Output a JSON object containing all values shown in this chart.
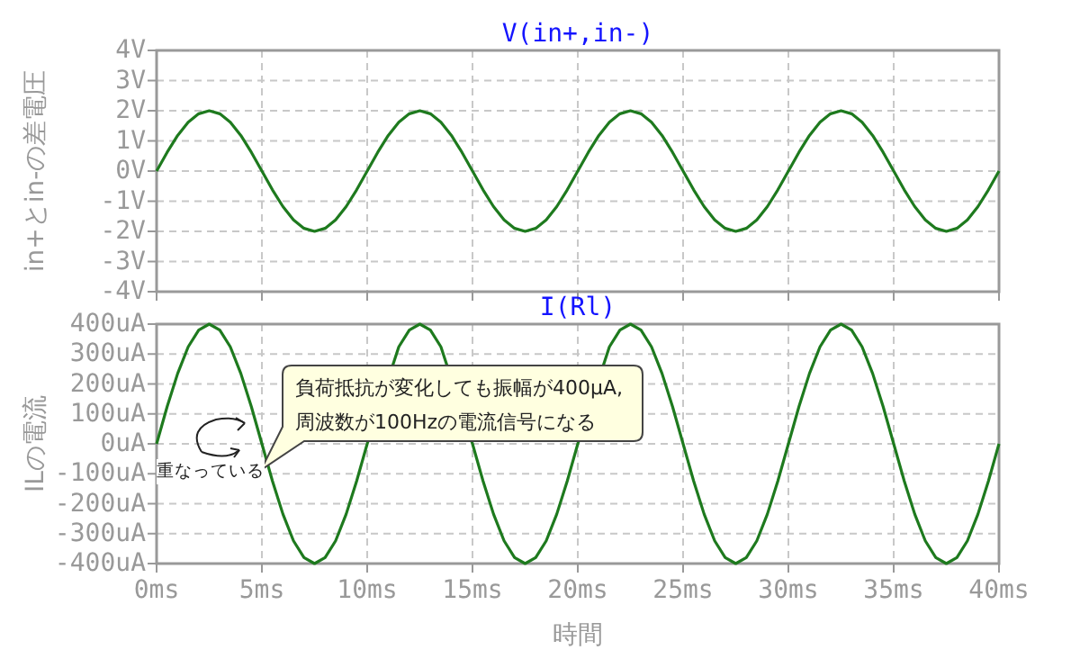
{
  "chart_data": [
    {
      "type": "line",
      "title": "V(in+,in-)",
      "ylabel": "in+とin-の差電圧",
      "tick_labels": "y",
      "grid": true,
      "xlim": [
        0,
        40
      ],
      "xticks": [
        {
          "value": 0,
          "label": null
        },
        {
          "value": 5,
          "label": null
        },
        {
          "value": 10,
          "label": null
        },
        {
          "value": 15,
          "label": null
        },
        {
          "value": 20,
          "label": null
        },
        {
          "value": 25,
          "label": null
        },
        {
          "value": 30,
          "label": null
        },
        {
          "value": 35,
          "label": null
        },
        {
          "value": 40,
          "label": null
        }
      ],
      "ylim": [
        -4,
        4
      ],
      "yticks": [
        {
          "value": 4,
          "label": "4V"
        },
        {
          "value": 3,
          "label": "3V"
        },
        {
          "value": 2,
          "label": "2V"
        },
        {
          "value": 1,
          "label": "1V"
        },
        {
          "value": 0,
          "label": "0V"
        },
        {
          "value": -1,
          "label": "-1V"
        },
        {
          "value": -2,
          "label": "-2V"
        },
        {
          "value": -3,
          "label": "-3V"
        },
        {
          "value": -4,
          "label": "-4V"
        }
      ],
      "x": [
        0,
        0.5,
        1,
        1.5,
        2,
        2.5,
        3,
        3.5,
        4,
        4.5,
        5,
        5.5,
        6,
        6.5,
        7,
        7.5,
        8,
        8.5,
        9,
        9.5,
        10,
        10.5,
        11,
        11.5,
        12,
        12.5,
        13,
        13.5,
        14,
        14.5,
        15,
        15.5,
        16,
        16.5,
        17,
        17.5,
        18,
        18.5,
        19,
        19.5,
        20,
        20.5,
        21,
        21.5,
        22,
        22.5,
        23,
        23.5,
        24,
        24.5,
        25,
        25.5,
        26,
        26.5,
        27,
        27.5,
        28,
        28.5,
        29,
        29.5,
        30,
        30.5,
        31,
        31.5,
        32,
        32.5,
        33,
        33.5,
        34,
        34.5,
        35,
        35.5,
        36,
        36.5,
        37,
        37.5,
        38,
        38.5,
        39,
        39.5,
        40
      ],
      "series": [
        {
          "color": "#1e7a1e",
          "values": [
            0,
            0.62,
            1.18,
            1.62,
            1.9,
            2,
            1.9,
            1.62,
            1.18,
            0.62,
            0,
            -0.62,
            -1.18,
            -1.62,
            -1.9,
            -2,
            -1.9,
            -1.62,
            -1.18,
            -0.62,
            0,
            0.62,
            1.18,
            1.62,
            1.9,
            2,
            1.9,
            1.62,
            1.18,
            0.62,
            0,
            -0.62,
            -1.18,
            -1.62,
            -1.9,
            -2,
            -1.9,
            -1.62,
            -1.18,
            -0.62,
            0,
            0.62,
            1.18,
            1.62,
            1.9,
            2,
            1.9,
            1.62,
            1.18,
            0.62,
            0,
            -0.62,
            -1.18,
            -1.62,
            -1.9,
            -2,
            -1.9,
            -1.62,
            -1.18,
            -0.62,
            0,
            0.62,
            1.18,
            1.62,
            1.9,
            2,
            1.9,
            1.62,
            1.18,
            0.62,
            0,
            -0.62,
            -1.18,
            -1.62,
            -1.9,
            -2,
            -1.9,
            -1.62,
            -1.18,
            -0.62,
            0
          ]
        }
      ]
    },
    {
      "type": "line",
      "title": "I(Rl)",
      "ylabel": "ILの電流",
      "xlabel": "時間",
      "grid": true,
      "xlim": [
        0,
        40
      ],
      "xticks": [
        {
          "value": 0,
          "label": "0ms"
        },
        {
          "value": 5,
          "label": "5ms"
        },
        {
          "value": 10,
          "label": "10ms"
        },
        {
          "value": 15,
          "label": "15ms"
        },
        {
          "value": 20,
          "label": "20ms"
        },
        {
          "value": 25,
          "label": "25ms"
        },
        {
          "value": 30,
          "label": "30ms"
        },
        {
          "value": 35,
          "label": "35ms"
        },
        {
          "value": 40,
          "label": "40ms"
        }
      ],
      "ylim": [
        -400,
        400
      ],
      "yticks": [
        {
          "value": 400,
          "label": "400uA"
        },
        {
          "value": 300,
          "label": "300uA"
        },
        {
          "value": 200,
          "label": "200uA"
        },
        {
          "value": 100,
          "label": "100uA"
        },
        {
          "value": 0,
          "label": "0uA"
        },
        {
          "value": -100,
          "label": "-100uA"
        },
        {
          "value": -200,
          "label": "-200uA"
        },
        {
          "value": -300,
          "label": "-300uA"
        },
        {
          "value": -400,
          "label": "-400uA"
        }
      ],
      "annotations": [
        "負荷抵抗が変化しても振幅が400μA,\n周波数が100Hzの電流信号になる",
        "重なっている"
      ],
      "series": [
        {
          "color": "#1e7a1e",
          "x": [
            0,
            0.5,
            1,
            1.5,
            2,
            2.5,
            3,
            3.5,
            4,
            4.5,
            5,
            5.5,
            6,
            6.5,
            7,
            7.5,
            8,
            8.5,
            9,
            9.5,
            10,
            11.5,
            12,
            12.5,
            13,
            13.5,
            15,
            15.5,
            16,
            16.5,
            17,
            17.5,
            18,
            18.5,
            19,
            19.5,
            20,
            21.5,
            22,
            22.5,
            23,
            23.5,
            24,
            24.5,
            25,
            25.5,
            26,
            26.5,
            27,
            27.5,
            28,
            28.5,
            29,
            29.5,
            30,
            30.5,
            31,
            31.5,
            32,
            32.5,
            33,
            33.5,
            34,
            34.5,
            35,
            35.5,
            36,
            36.5,
            37,
            37.5,
            38,
            38.5,
            39,
            39.5,
            40
          ],
          "values": [
            0,
            124,
            235,
            324,
            380,
            400,
            380,
            324,
            235,
            124,
            0,
            -124,
            -235,
            -324,
            -380,
            -400,
            -380,
            -324,
            -235,
            -124,
            0,
            324,
            380,
            400,
            380,
            324,
            0,
            -124,
            -235,
            -324,
            -380,
            -400,
            -380,
            -324,
            -235,
            -124,
            0,
            324,
            380,
            400,
            380,
            324,
            235,
            124,
            0,
            -124,
            -235,
            -324,
            -380,
            -400,
            -380,
            -324,
            -235,
            -124,
            0,
            124,
            235,
            324,
            380,
            400,
            380,
            324,
            235,
            124,
            0,
            -124,
            -235,
            -324,
            -380,
            -400,
            -380,
            -324,
            -235,
            -124,
            0
          ]
        }
      ]
    }
  ]
}
